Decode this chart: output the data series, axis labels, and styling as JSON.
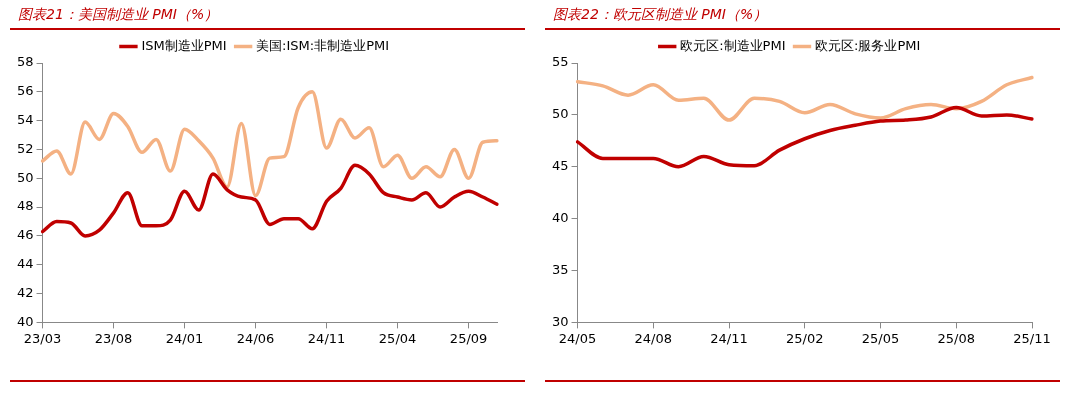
{
  "chart_data": [
    {
      "type": "line",
      "title": "图表21：美国制造业 PMI（%）",
      "categories": [
        "23/03",
        null,
        null,
        null,
        null,
        "23/08",
        null,
        null,
        null,
        null,
        "24/01",
        null,
        null,
        null,
        null,
        "24/06",
        null,
        null,
        null,
        null,
        "24/11",
        null,
        null,
        null,
        null,
        "25/04",
        null,
        null,
        null,
        null,
        "25/09",
        null,
        null
      ],
      "series": [
        {
          "name": "ISM制造业PMI",
          "color": "#c00000",
          "values": [
            46.3,
            47.0,
            46.9,
            46.0,
            46.4,
            47.6,
            49.0,
            46.7,
            46.7,
            47.1,
            49.1,
            47.8,
            50.3,
            49.2,
            48.7,
            48.5,
            46.8,
            47.2,
            47.2,
            46.5,
            48.4,
            49.3,
            50.9,
            50.3,
            49.0,
            48.7,
            48.5,
            49.0,
            48.0,
            48.7,
            49.1,
            48.7,
            48.2
          ]
        },
        {
          "name": "美国:ISM:非制造业PMI",
          "color": "#f4b183",
          "values": [
            51.2,
            51.9,
            50.3,
            53.9,
            52.7,
            54.5,
            53.6,
            51.8,
            52.7,
            50.5,
            53.4,
            52.6,
            51.4,
            49.4,
            53.8,
            48.8,
            51.4,
            51.5,
            54.9,
            56.0,
            52.1,
            54.1,
            52.8,
            53.5,
            50.8,
            51.6,
            50.0,
            50.8,
            50.1,
            52.0,
            50.0,
            52.5,
            52.6
          ]
        }
      ],
      "ylim": [
        40,
        58
      ],
      "yticks": [
        40,
        42,
        44,
        46,
        48,
        50,
        52,
        54,
        56,
        58
      ],
      "grid": false,
      "legend": "top",
      "marker": "none",
      "line_style": "solid"
    },
    {
      "type": "line",
      "title": "图表22：欧元区制造业 PMI（%）",
      "categories": [
        "24/05",
        null,
        null,
        "24/08",
        null,
        null,
        "24/11",
        null,
        null,
        "25/02",
        null,
        null,
        "25/05",
        null,
        null,
        "25/08",
        null,
        null,
        "25/11"
      ],
      "series": [
        {
          "name": "欧元区:制造业PMI",
          "color": "#c00000",
          "values": [
            47.4,
            45.8,
            45.8,
            45.8,
            45.0,
            46.0,
            45.2,
            45.1,
            46.6,
            47.7,
            48.5,
            49.0,
            49.4,
            49.5,
            49.8,
            50.7,
            49.9,
            50.0,
            49.6
          ]
        },
        {
          "name": "欧元区:服务业PMI",
          "color": "#f4b183",
          "values": [
            53.2,
            52.8,
            51.9,
            52.9,
            51.4,
            51.6,
            49.5,
            51.6,
            51.3,
            50.2,
            51.0,
            50.1,
            49.7,
            50.6,
            51.0,
            50.6,
            51.3,
            52.9,
            53.6
          ]
        }
      ],
      "ylim": [
        30,
        55
      ],
      "yticks": [
        30,
        35,
        40,
        45,
        50,
        55
      ],
      "grid": false,
      "legend": "top",
      "marker": "none",
      "line_style": "solid"
    }
  ]
}
